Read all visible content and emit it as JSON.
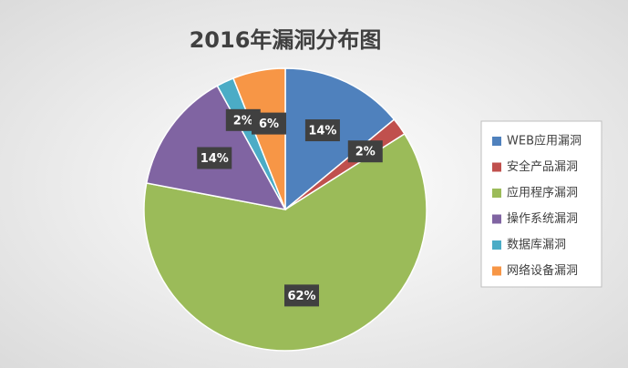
{
  "chart_data": {
    "type": "pie",
    "title": "2016年漏洞分布图",
    "categories": [
      "WEB应用漏洞",
      "安全产品漏洞",
      "应用程序漏洞",
      "操作系统漏洞",
      "数据库漏洞",
      "网络设备漏洞"
    ],
    "values": [
      14,
      2,
      62,
      14,
      2,
      6
    ],
    "value_labels": [
      "14%",
      "2%",
      "62%",
      "14%",
      "2%",
      "6%"
    ],
    "colors": [
      "#4f81bd",
      "#c0504d",
      "#9bbb59",
      "#8064a2",
      "#4bacc6",
      "#f79646"
    ],
    "legend": "right"
  }
}
